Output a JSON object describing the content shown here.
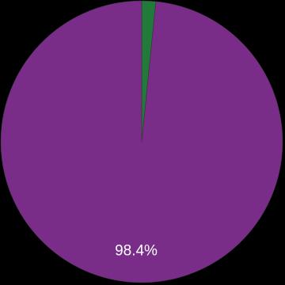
{
  "chart_data": {
    "type": "pie",
    "categories": [
      null,
      null
    ],
    "values": [
      1.6,
      98.4
    ],
    "value_labels": [
      null,
      "98.4%"
    ],
    "colors": [
      "#217a3a",
      "#7a2c89"
    ],
    "start_angle": 0,
    "direction": "clockwise"
  }
}
